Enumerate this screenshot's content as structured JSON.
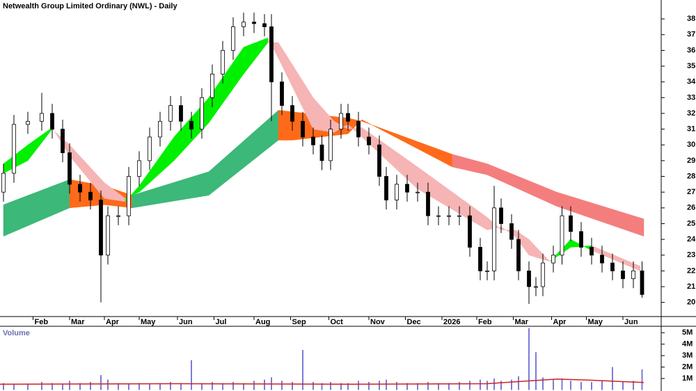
{
  "chart_data": [
    {
      "type": "candlestick",
      "title": "Netwealth Group Limited Ordinary (NWL) - Daily",
      "x": [
        2,
        8,
        16,
        24,
        30,
        36,
        40,
        46,
        52,
        58,
        62,
        68,
        74,
        80,
        86,
        92,
        98,
        104,
        110,
        116,
        122,
        128,
        134,
        140,
        146,
        152,
        156,
        162,
        168,
        174,
        180,
        185,
        190,
        196,
        200,
        206,
        212,
        218,
        222,
        228,
        234,
        240,
        246,
        252,
        258,
        264,
        270,
        276,
        280,
        284,
        288,
        294,
        298,
        304,
        308,
        312,
        318,
        323,
        328,
        334,
        340,
        346,
        352,
        358,
        364,
        369
      ],
      "open": [
        27,
        28.2,
        31.3,
        31.5,
        32,
        31,
        29.5,
        27.5,
        27,
        26.5,
        23,
        25.5,
        25.5,
        28,
        29,
        30.5,
        31.5,
        32.5,
        31.5,
        31,
        33,
        34.5,
        36,
        37.5,
        37.8,
        37.7,
        37.5,
        34,
        32.5,
        31.5,
        30.5,
        30,
        29,
        31,
        32,
        31.5,
        30.5,
        30,
        28,
        26.5,
        27.5,
        27,
        27,
        25.5,
        25.5,
        25.5,
        25.5,
        23.5,
        22,
        22,
        26,
        25,
        24,
        22,
        21,
        21,
        22.5,
        23,
        25.5,
        24.5,
        23.5,
        23,
        22.5,
        22,
        21.5,
        22
      ],
      "high": [
        28.8,
        31.9,
        32.1,
        33.3,
        32.6,
        31.6,
        30.1,
        28.1,
        27.6,
        27.1,
        26.1,
        26.1,
        28.6,
        29.6,
        31.1,
        32.1,
        33.1,
        33.1,
        32.1,
        33.6,
        35.1,
        36.6,
        38.1,
        38.4,
        38.4,
        38.3,
        38.3,
        34.6,
        33.1,
        32.1,
        31.1,
        30.6,
        31.6,
        32.6,
        32.6,
        32.1,
        31.1,
        30.6,
        28.6,
        28.1,
        28.1,
        27.6,
        27.6,
        26.1,
        26.1,
        26.1,
        26.1,
        24.1,
        22.6,
        27.4,
        26.6,
        25.6,
        24.6,
        22.6,
        21.6,
        23.1,
        23.6,
        26.1,
        26.1,
        25.1,
        24.1,
        23.6,
        23.1,
        22.6,
        22.6,
        22.6
      ],
      "low": [
        26.4,
        27.6,
        30.7,
        30.9,
        30.4,
        28.9,
        26.9,
        26.4,
        25.9,
        20,
        22.4,
        24.9,
        24.9,
        27.4,
        28.4,
        29.9,
        30.9,
        30.9,
        30.4,
        30.4,
        32.4,
        33.9,
        35.4,
        36.9,
        37.1,
        36.9,
        31.5,
        31.9,
        30.9,
        29.9,
        29.4,
        28.4,
        28.4,
        30.4,
        30.9,
        29.9,
        29.4,
        27.4,
        25.9,
        25.9,
        26.4,
        26.4,
        24.9,
        24.9,
        24.9,
        24.9,
        22.9,
        21.4,
        21.4,
        21.4,
        24.4,
        23.4,
        21.4,
        19.9,
        20.4,
        20.4,
        21.9,
        22.4,
        23.9,
        22.9,
        22.4,
        21.9,
        21.4,
        20.9,
        20.9,
        20.3
      ],
      "close": [
        28.2,
        31.3,
        31.5,
        32,
        31,
        29.5,
        27.5,
        27,
        26.5,
        23,
        25.5,
        25.5,
        28,
        29,
        30.5,
        31.5,
        32.5,
        31.5,
        31,
        33,
        34.5,
        36,
        37.5,
        37.8,
        37.7,
        37.5,
        34,
        32.5,
        31.5,
        30.5,
        30,
        29,
        31,
        32,
        31.5,
        30.5,
        30,
        28,
        26.5,
        27.5,
        27,
        27,
        25.5,
        25.5,
        25.5,
        25.5,
        23.5,
        22,
        22,
        26,
        25,
        24,
        22,
        21,
        21,
        22.5,
        23,
        25.5,
        24.5,
        23.5,
        23,
        22.5,
        22,
        21.5,
        22,
        20.5
      ],
      "up_color": "#ffffff",
      "down_color": "#000000",
      "ribbons": [
        {
          "x": [
            2,
            40,
            60,
            76,
            120,
            160,
            168,
            200,
            208,
            260,
            280,
            320,
            370
          ],
          "fast": [
            26.2,
            27.8,
            27.4,
            26.8,
            28.3,
            32.2,
            32.1,
            31.7,
            31.5,
            29.4,
            28.8,
            27.0,
            25.3
          ],
          "slow": [
            24.2,
            26.0,
            26.2,
            26.0,
            26.8,
            30.3,
            30.3,
            30.7,
            31.6,
            28.6,
            28.1,
            26.1,
            24.2
          ],
          "segment_colors": [
            "#3cb878",
            "#ff6a1a",
            "#ff6a1a",
            "#3cb878",
            "#3cb878",
            "#ff6a1a",
            "#ff6a1a",
            "#ff6a1a",
            "#ff6a1a",
            "#f47e7e",
            "#f47e7e",
            "#f47e7e"
          ]
        },
        {
          "x": [
            2,
            16,
            30,
            40,
            60,
            72,
            80,
            100,
            120,
            140,
            154,
            160,
            180,
            192,
            200,
            208,
            240,
            280,
            288,
            296,
            304,
            316,
            328,
            340,
            368
          ],
          "fast": [
            28.8,
            30,
            31.1,
            29.3,
            26.6,
            26.4,
            27.4,
            30.5,
            33,
            36.2,
            36.8,
            35.5,
            31,
            30.8,
            31.3,
            30.5,
            27.2,
            24.6,
            24.8,
            24.2,
            23,
            22.6,
            24,
            23.3,
            22
          ],
          "slow": [
            28.2,
            29,
            31,
            30,
            27.6,
            26.6,
            27,
            29,
            31.4,
            34.5,
            36.5,
            36.5,
            33,
            31.5,
            31,
            31.1,
            28.6,
            25.4,
            24.6,
            24.6,
            24,
            22.6,
            23.5,
            23.6,
            22.3
          ],
          "up_color": "#00f000",
          "down_color": "#f6b4b4"
        }
      ],
      "xlim": [
        0,
        380
      ],
      "xticks": [
        {
          "value": 19,
          "label": "Feb"
        },
        {
          "value": 40,
          "label": "Mar"
        },
        {
          "value": 60,
          "label": "Apr"
        },
        {
          "value": 80,
          "label": "May"
        },
        {
          "value": 102,
          "label": "Jun"
        },
        {
          "value": 123,
          "label": "Jul"
        },
        {
          "value": 146,
          "label": "Aug"
        },
        {
          "value": 167,
          "label": "Sep"
        },
        {
          "value": 189,
          "label": "Oct"
        },
        {
          "value": 212,
          "label": "Nov"
        },
        {
          "value": 233,
          "label": "Dec"
        },
        {
          "value": 254,
          "label": "2026"
        },
        {
          "value": 274,
          "label": "Feb"
        },
        {
          "value": 295,
          "label": "Mar"
        },
        {
          "value": 317,
          "label": "Apr"
        },
        {
          "value": 337,
          "label": "May"
        },
        {
          "value": 358,
          "label": "Jun"
        }
      ],
      "ylim": [
        19.1,
        39.2
      ],
      "yticks": [
        20,
        21,
        22,
        23,
        24,
        25,
        26,
        27,
        28,
        29,
        30,
        31,
        32,
        33,
        34,
        35,
        36,
        37,
        38
      ]
    },
    {
      "type": "bar",
      "label": "Volume",
      "x": [
        2,
        8,
        16,
        24,
        30,
        36,
        40,
        46,
        52,
        58,
        62,
        68,
        74,
        80,
        86,
        92,
        98,
        104,
        110,
        116,
        122,
        128,
        134,
        140,
        146,
        152,
        156,
        162,
        168,
        174,
        180,
        185,
        190,
        196,
        200,
        206,
        212,
        218,
        222,
        228,
        234,
        240,
        246,
        252,
        258,
        264,
        270,
        276,
        280,
        284,
        288,
        294,
        298,
        304,
        308,
        312,
        318,
        323,
        328,
        334,
        340,
        346,
        352,
        358,
        364,
        369
      ],
      "values": [
        0.6,
        0.5,
        0.5,
        0.7,
        0.6,
        0.5,
        0.8,
        0.6,
        0.7,
        1.3,
        0.9,
        0.6,
        0.5,
        0.6,
        0.5,
        0.6,
        0.7,
        0.6,
        2.6,
        0.6,
        0.7,
        0.6,
        0.7,
        0.6,
        0.8,
        0.9,
        1.1,
        0.8,
        0.7,
        3.5,
        0.7,
        0.6,
        0.7,
        0.6,
        0.6,
        0.8,
        0.7,
        0.8,
        0.9,
        0.7,
        0.6,
        0.6,
        0.7,
        0.6,
        0.6,
        0.7,
        0.8,
        0.9,
        0.8,
        1.0,
        0.8,
        0.9,
        1.2,
        5.4,
        3.3,
        1.1,
        0.9,
        1.0,
        0.8,
        0.7,
        0.7,
        0.8,
        2.0,
        0.7,
        0.8,
        1.8
      ],
      "color": "#7b7bd6",
      "average": {
        "x": [
          0,
          100,
          200,
          280,
          300,
          320,
          340,
          370
        ],
        "values": [
          0.5,
          0.55,
          0.5,
          0.55,
          0.75,
          0.95,
          0.85,
          0.65
        ],
        "color": "#d02020"
      },
      "xlim": [
        0,
        380
      ],
      "ylim": [
        0,
        5.5
      ],
      "yticks": [
        {
          "value": 1,
          "label": "1M"
        },
        {
          "value": 2,
          "label": "2M"
        },
        {
          "value": 3,
          "label": "3M"
        },
        {
          "value": 4,
          "label": "4M"
        },
        {
          "value": 5,
          "label": "5M"
        }
      ]
    }
  ]
}
